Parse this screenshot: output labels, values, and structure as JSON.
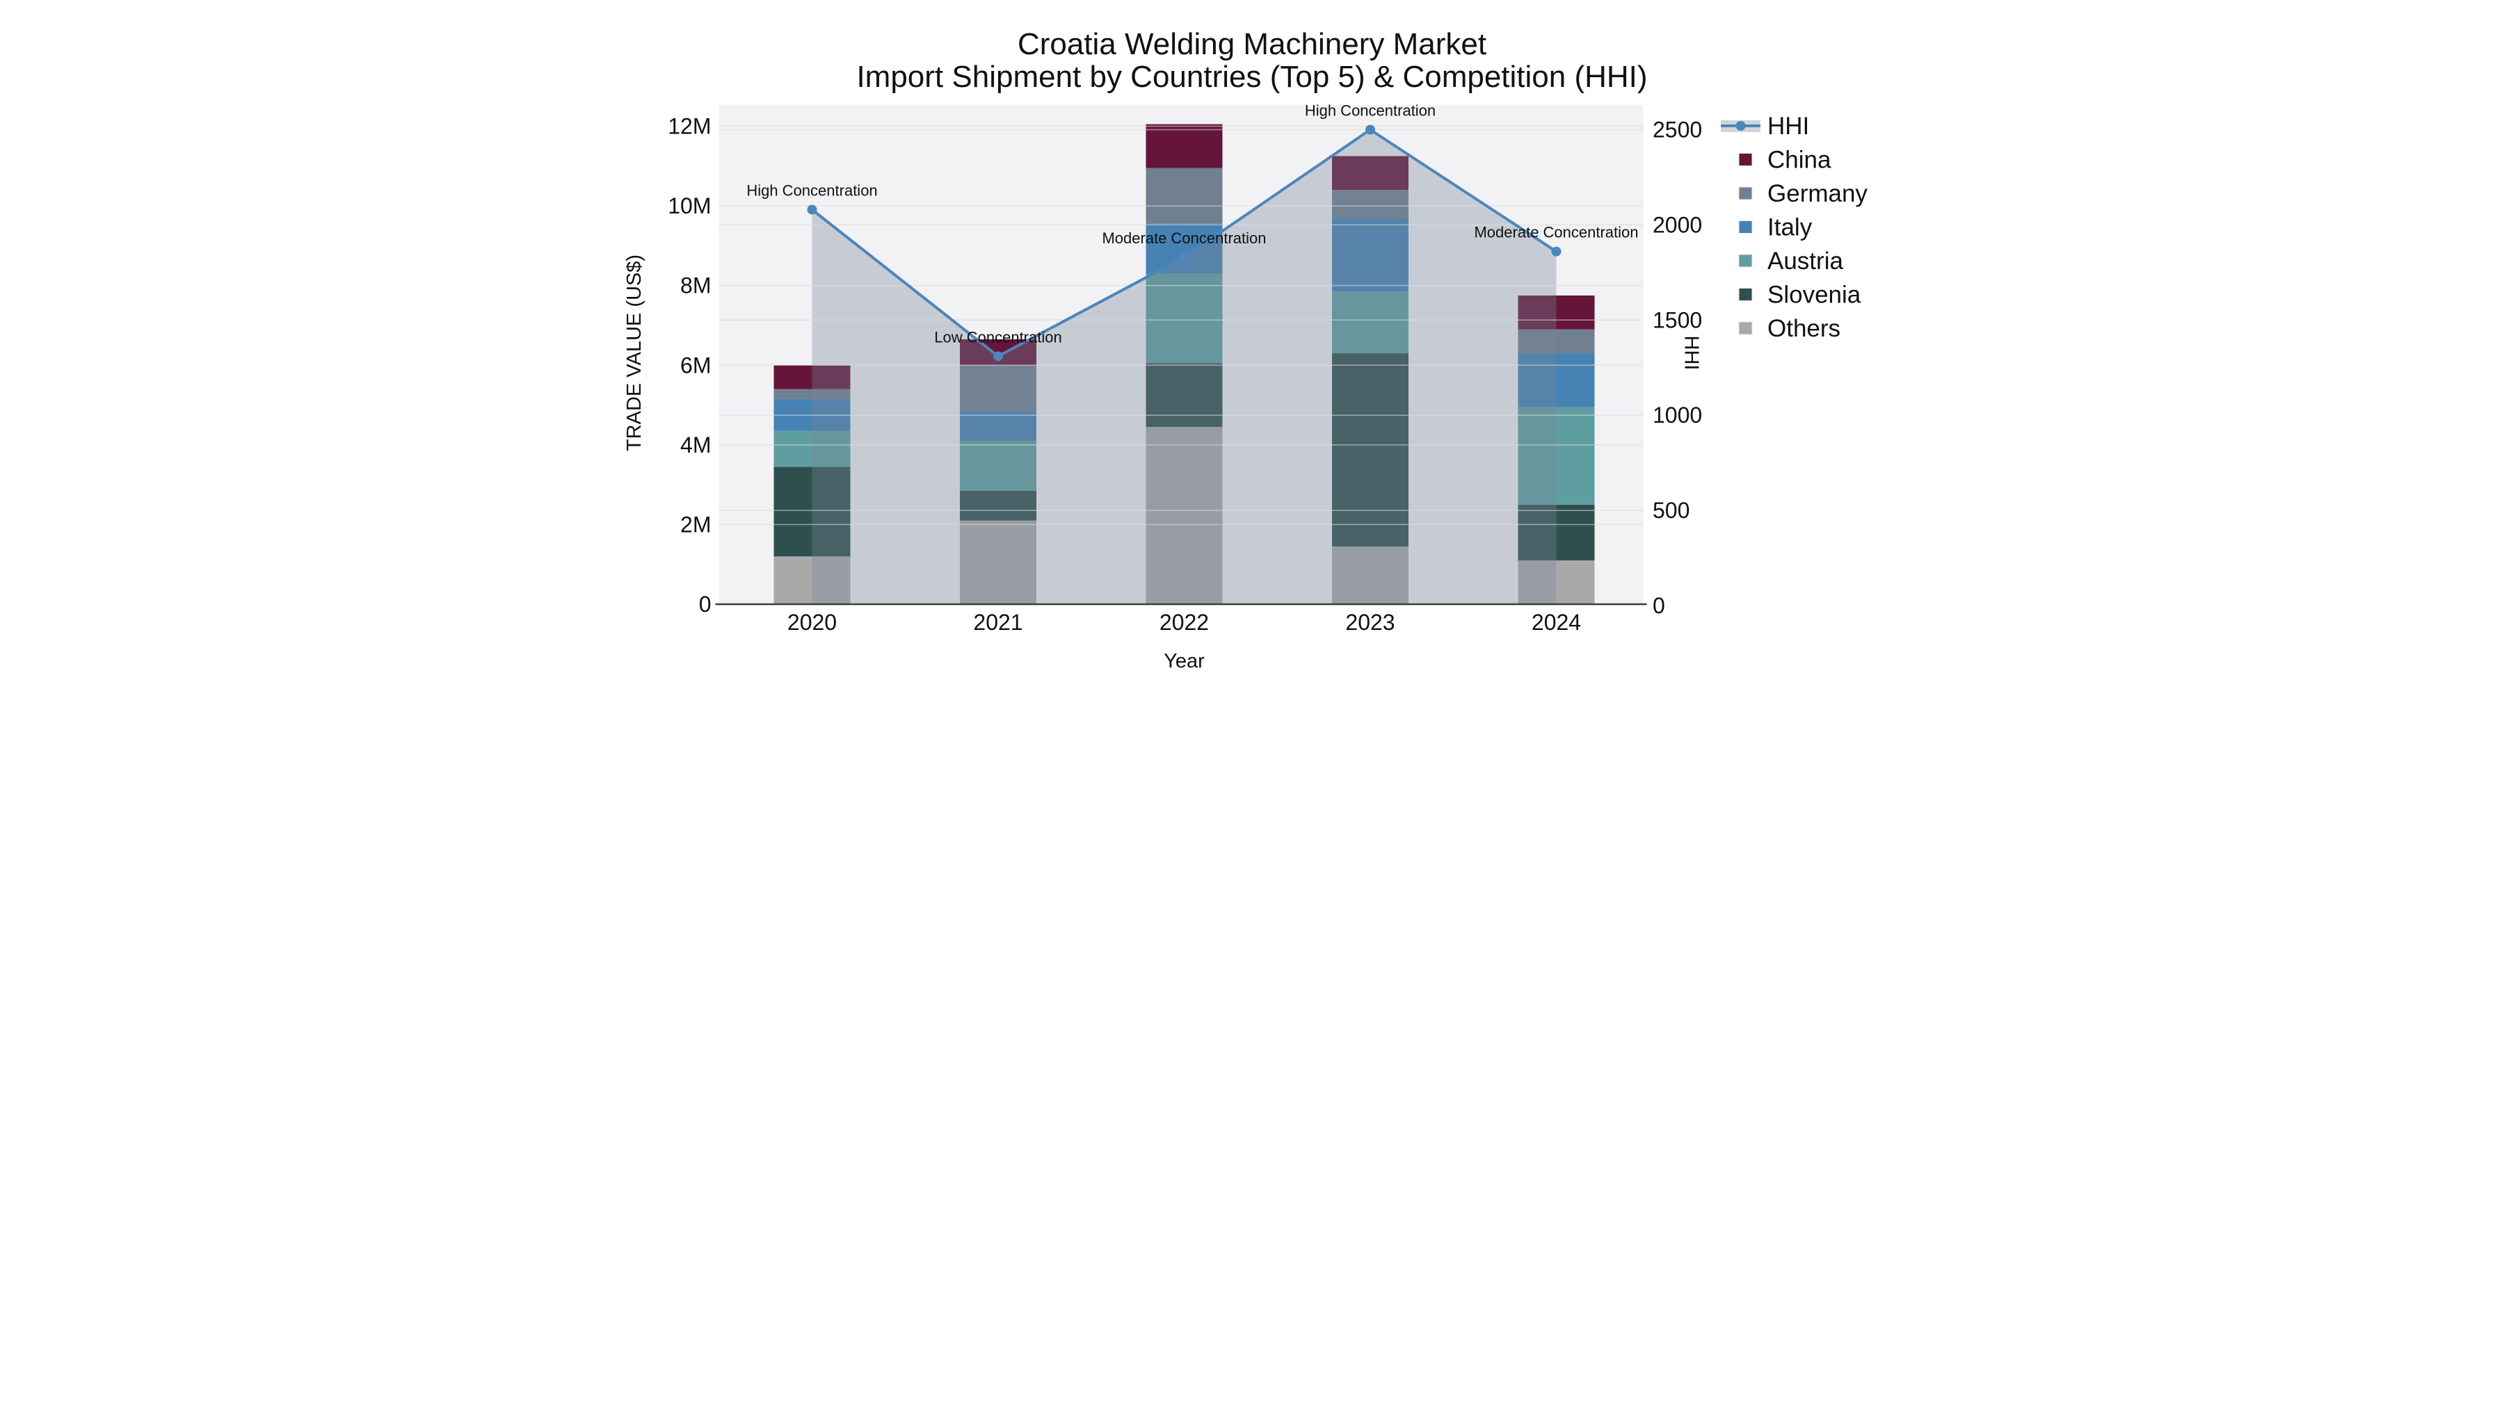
{
  "chart_data": {
    "type": "bar",
    "subtype": "stacked-bar-with-line-dual-axis",
    "title": "Croatia Welding Machinery Market",
    "subtitle": "Import Shipment by Countries (Top 5) & Competition (HHI)",
    "xlabel": "Year",
    "ylabel_left": "TRADE VALUE (US$)",
    "ylabel_right": "HHI",
    "categories": [
      "2020",
      "2021",
      "2022",
      "2023",
      "2024"
    ],
    "stack_order_bottom_to_top": [
      "Others",
      "Slovenia",
      "Austria",
      "Italy",
      "Germany",
      "China"
    ],
    "series": [
      {
        "name": "China",
        "color": "#641539",
        "values_m_usd": [
          0.6,
          0.65,
          1.1,
          0.85,
          0.85
        ]
      },
      {
        "name": "Germany",
        "color": "#708090",
        "values_m_usd": [
          0.25,
          1.15,
          1.4,
          0.7,
          0.6
        ]
      },
      {
        "name": "Italy",
        "color": "#4682B4",
        "values_m_usd": [
          0.8,
          0.75,
          1.25,
          1.85,
          1.35
        ]
      },
      {
        "name": "Austria",
        "color": "#5F9EA0",
        "values_m_usd": [
          0.9,
          1.25,
          2.25,
          1.55,
          2.45
        ]
      },
      {
        "name": "Slovenia",
        "color": "#2F4F4F",
        "values_m_usd": [
          2.25,
          0.75,
          1.6,
          4.85,
          1.4
        ]
      },
      {
        "name": "Others",
        "color": "#A9A9A9",
        "values_m_usd": [
          1.2,
          2.1,
          4.45,
          1.45,
          1.1
        ]
      }
    ],
    "line_series": {
      "name": "HHI",
      "color": "#4C86BC",
      "marker": "circle",
      "area_fill_color": "#778899",
      "area_fill_opacity": 0.35,
      "values": [
        2080,
        1310,
        1830,
        2500,
        1860
      ]
    },
    "annotations": [
      {
        "year": "2020",
        "text": "High Concentration"
      },
      {
        "year": "2021",
        "text": "Low Concentration"
      },
      {
        "year": "2022",
        "text": "Moderate Concentration"
      },
      {
        "year": "2023",
        "text": "High Concentration"
      },
      {
        "year": "2024",
        "text": "Moderate Concentration"
      }
    ],
    "y_left": {
      "tick_labels": [
        "0",
        "2M",
        "4M",
        "6M",
        "8M",
        "10M",
        "12M"
      ],
      "tick_values": [
        0,
        2,
        4,
        6,
        8,
        10,
        12
      ],
      "lim": [
        0,
        12.5
      ]
    },
    "y_right": {
      "tick_labels": [
        "0",
        "500",
        "1000",
        "1500",
        "2000",
        "2500"
      ],
      "tick_values": [
        0,
        500,
        1000,
        1500,
        2000,
        2500
      ],
      "lim": [
        0,
        2500
      ]
    },
    "legend": {
      "position": "right",
      "entries": [
        "HHI",
        "China",
        "Germany",
        "Italy",
        "Austria",
        "Slovenia",
        "Others"
      ]
    },
    "grid": true,
    "colors": {
      "plot_background": "#F2F2F4",
      "figure_background": "#FFFFFF",
      "gridline": "#DADADF",
      "axis_spine": "#3C3C3C",
      "text": "#111111"
    }
  }
}
